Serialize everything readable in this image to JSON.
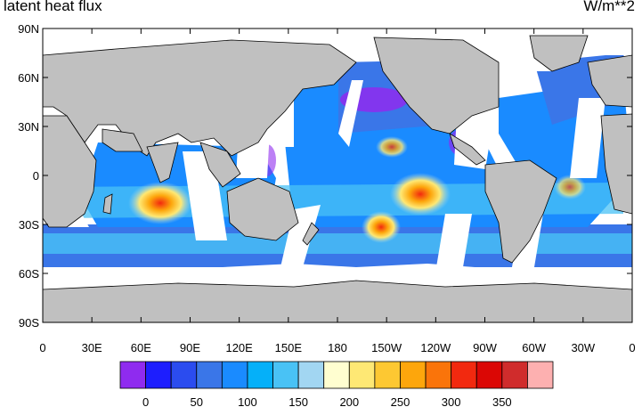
{
  "map": {
    "title": "latent heat flux",
    "units": "W/m**2",
    "projection": "cylindrical-equidistant",
    "lat_range": [
      -90,
      90
    ],
    "lon_range": [
      0,
      360
    ],
    "land_color": "#c0c0c0",
    "missing_color": "#ffffff",
    "lat_ticks": [
      "90N",
      "60N",
      "30N",
      "0",
      "30S",
      "60S",
      "90S"
    ],
    "lon_ticks": [
      "0",
      "30E",
      "60E",
      "90E",
      "120E",
      "150E",
      "180",
      "150W",
      "120W",
      "90W",
      "60W",
      "30W",
      "0"
    ]
  },
  "colorbar": {
    "colors": [
      "#8f2bef",
      "#1d1efe",
      "#2b4cef",
      "#3a76e8",
      "#1a8bff",
      "#05b0f9",
      "#49c2f5",
      "#a2d6f2",
      "#fffed0",
      "#fee874",
      "#fdc832",
      "#fda60c",
      "#fa740a",
      "#f2290f",
      "#db0705",
      "#d02c2c",
      "#fdb0b0"
    ],
    "labels": [
      "0",
      "50",
      "100",
      "150",
      "200",
      "250",
      "300",
      "350"
    ]
  }
}
